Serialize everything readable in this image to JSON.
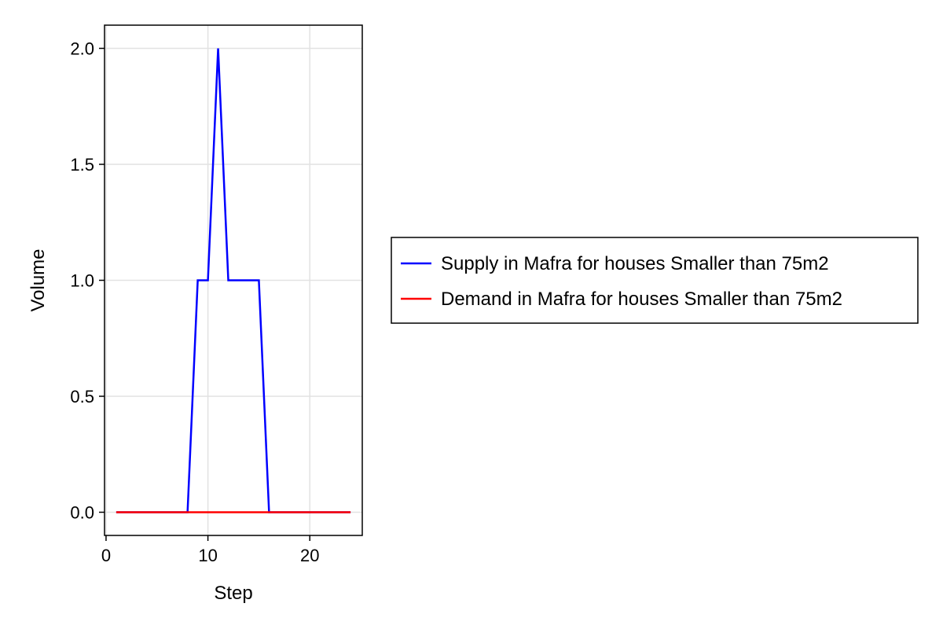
{
  "chart_data": {
    "type": "line",
    "title": "",
    "xlabel": "Step",
    "ylabel": "Volume",
    "xlim": [
      -0.15,
      25.15
    ],
    "ylim": [
      -0.1,
      2.1
    ],
    "xticks": [
      0,
      10,
      20
    ],
    "xtick_labels": [
      "0",
      "10",
      "20"
    ],
    "yticks": [
      0,
      0.5,
      1,
      1.5,
      2
    ],
    "ytick_labels": [
      "0.0",
      "0.5",
      "1.0",
      "1.5",
      "2.0"
    ],
    "grid": true,
    "legend_position": "right",
    "x": [
      1,
      2,
      3,
      4,
      5,
      6,
      7,
      8,
      9,
      10,
      11,
      12,
      13,
      14,
      15,
      16,
      17,
      18,
      19,
      20,
      21,
      22,
      23,
      24
    ],
    "series": [
      {
        "name": "Supply in Mafra for houses Smaller than 75m2",
        "color": "#0000ff",
        "values": [
          0,
          0,
          0,
          0,
          0,
          0,
          0,
          0,
          1,
          1,
          2,
          1,
          1,
          1,
          1,
          0,
          0,
          0,
          0,
          0,
          0,
          0,
          0,
          0
        ]
      },
      {
        "name": "Demand in Mafra for houses Smaller than 75m2",
        "color": "#ff0000",
        "values": [
          0,
          0,
          0,
          0,
          0,
          0,
          0,
          0,
          0,
          0,
          0,
          0,
          0,
          0,
          0,
          0,
          0,
          0,
          0,
          0,
          0,
          0,
          0,
          0
        ]
      }
    ]
  }
}
